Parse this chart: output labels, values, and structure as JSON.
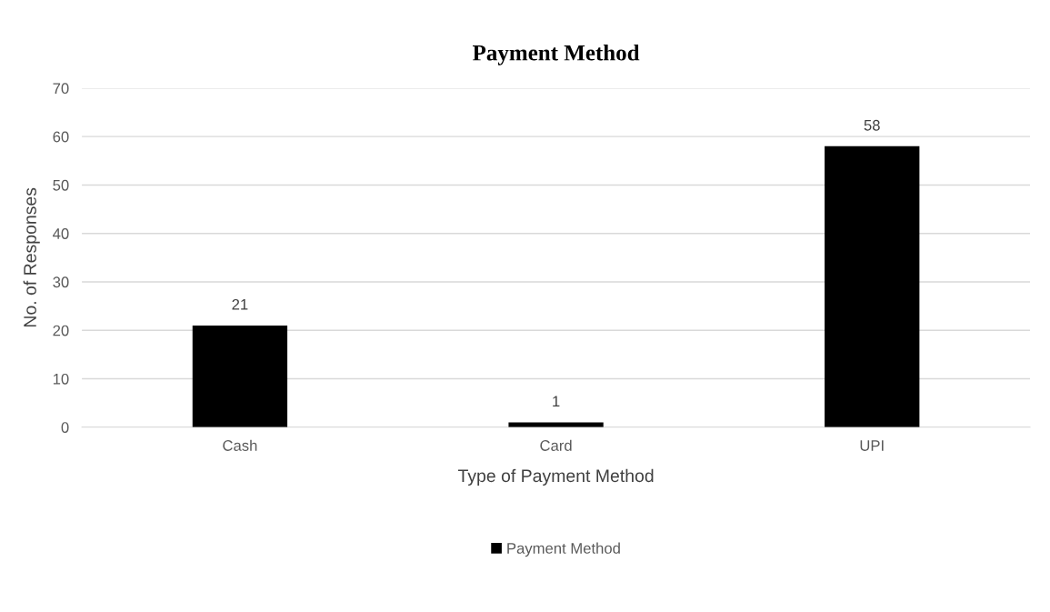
{
  "chart_data": {
    "type": "bar",
    "title": "Payment Method",
    "xlabel": "Type of Payment Method",
    "ylabel": "No. of Responses",
    "categories": [
      "Cash",
      "Card",
      "UPI"
    ],
    "series": [
      {
        "name": "Payment Method",
        "color": "#000000",
        "values": [
          21,
          1,
          58
        ]
      }
    ],
    "ylim": [
      0,
      70
    ],
    "yticks": [
      0,
      10,
      20,
      30,
      40,
      50,
      60,
      70
    ],
    "grid": "y",
    "legend": "bottom",
    "data_labels": true
  }
}
